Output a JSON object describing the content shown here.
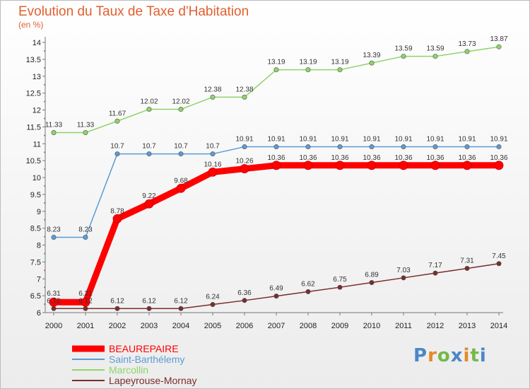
{
  "title": "Evolution du Taux de Taxe d'Habitation",
  "subtitle": "(en %)",
  "logo": "Proxiti",
  "chart_data": {
    "type": "line",
    "title": "Evolution du Taux de Taxe d'Habitation",
    "ylabel": "(en %)",
    "xlabel": "",
    "x": [
      2000,
      2001,
      2002,
      2003,
      2004,
      2005,
      2006,
      2007,
      2008,
      2009,
      2010,
      2011,
      2012,
      2013,
      2014
    ],
    "ylim": [
      6,
      14
    ],
    "yticks": [
      6,
      6.5,
      7,
      7.5,
      8,
      8.5,
      9,
      9.5,
      10,
      10.5,
      11,
      11.5,
      12,
      12.5,
      13,
      13.5,
      14
    ],
    "grid": false,
    "legend_position": "bottom-left",
    "series": [
      {
        "name": "BEAUREPAIRE",
        "color": "#ff0000",
        "labels": [
          "6.31",
          "6.31",
          "8.78",
          "9.22",
          "9.68",
          "10.16",
          "10.26",
          "10.36",
          "10.36",
          "10.36",
          "10.36",
          "10.36",
          "10.36",
          "10.36",
          "10.36"
        ],
        "values": [
          6.31,
          6.31,
          8.78,
          9.22,
          9.68,
          10.16,
          10.26,
          10.36,
          10.36,
          10.36,
          10.36,
          10.36,
          10.36,
          10.36,
          10.36
        ]
      },
      {
        "name": "Saint-Barthélemy",
        "color": "#5b9bd5",
        "labels": [
          "8.23",
          "8.23",
          "10.7",
          "10.7",
          "10.7",
          "10.7",
          "10.91",
          "10.91",
          "10.91",
          "10.91",
          "10.91",
          "10.91",
          "10.91",
          "10.91",
          "10.91"
        ],
        "values": [
          8.23,
          8.23,
          10.7,
          10.7,
          10.7,
          10.7,
          10.91,
          10.91,
          10.91,
          10.91,
          10.91,
          10.91,
          10.91,
          10.91,
          10.91
        ]
      },
      {
        "name": "Marcollin",
        "color": "#8fd46a",
        "labels": [
          "11.33",
          "11.33",
          "11.67",
          "12.02",
          "12.02",
          "12.38",
          "12.38",
          "13.19",
          "13.19",
          "13.19",
          "13.39",
          "13.59",
          "13.59",
          "13.73",
          "13.87"
        ],
        "values": [
          11.33,
          11.33,
          11.67,
          12.02,
          12.02,
          12.38,
          12.38,
          13.19,
          13.19,
          13.19,
          13.39,
          13.59,
          13.59,
          13.73,
          13.87
        ]
      },
      {
        "name": "Lapeyrouse-Mornay",
        "color": "#7b2c2c",
        "labels": [
          "6.12",
          "6.12",
          "6.12",
          "6.12",
          "6.12",
          "6.24",
          "6.36",
          "6.49",
          "6.62",
          "6.75",
          "6.89",
          "7.03",
          "7.17",
          "7.31",
          "7.45"
        ],
        "values": [
          6.12,
          6.12,
          6.12,
          6.12,
          6.12,
          6.24,
          6.36,
          6.49,
          6.62,
          6.75,
          6.89,
          7.03,
          7.17,
          7.31,
          7.45
        ]
      }
    ]
  }
}
